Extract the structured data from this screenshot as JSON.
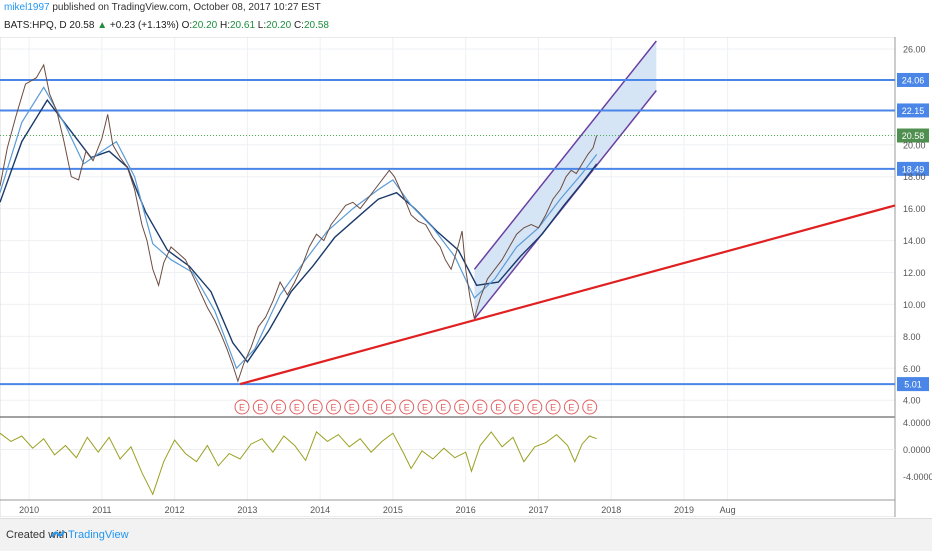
{
  "header": {
    "author": "mikel1997",
    "published_text": "published on TradingView.com, October 08, 2017 10:27 EST"
  },
  "symbol_line": {
    "symbol": "BATS:HPQ, D",
    "last": "20.58",
    "change_arrow": "▲",
    "change": "+0.23 (+1.13%)",
    "o_label": "O:",
    "o_val": "20.20",
    "h_label": "H:",
    "h_val": "20.61",
    "l_label": "L:",
    "l_val": "20.20",
    "c_label": "C:",
    "c_val": "20.58"
  },
  "footer": {
    "created_with": "Created with",
    "brand": "TradingView"
  },
  "colors": {
    "price": "#6d4c41",
    "ma_fast": "#5b9bd5",
    "ma_slow": "#1a3a6b",
    "hline": "#4a86e8",
    "trend": "#e02020",
    "channel_fill": "#cfe0f5",
    "channel_line": "#6a3fa0",
    "osc": "#9aa020",
    "earnings": "#e06060"
  },
  "chart_data": [
    {
      "type": "line",
      "series": [],
      "x_tick_labels": [
        "2010",
        "2011",
        "2012",
        "2013",
        "2014",
        "2015",
        "2016",
        "2017",
        "2018",
        "2019",
        "Aug"
      ],
      "y_tick_labels": [
        "26.00",
        "20.00",
        "18.00",
        "16.00",
        "14.00",
        "12.00",
        "10.00",
        "8.00",
        "6.00",
        "4.00"
      ],
      "ylim": [
        3.2,
        26.5
      ],
      "xlim": [
        2009.6,
        2021.9
      ],
      "price_points": [
        [
          2009.6,
          17.4
        ],
        [
          2009.7,
          19.8
        ],
        [
          2009.82,
          21.8
        ],
        [
          2009.95,
          23.8
        ],
        [
          2010.1,
          24.2
        ],
        [
          2010.2,
          25.0
        ],
        [
          2010.28,
          23.2
        ],
        [
          2010.38,
          22.1
        ],
        [
          2010.48,
          20.2
        ],
        [
          2010.58,
          18.0
        ],
        [
          2010.68,
          17.8
        ],
        [
          2010.78,
          19.6
        ],
        [
          2010.88,
          19.0
        ],
        [
          2011.0,
          20.4
        ],
        [
          2011.08,
          21.9
        ],
        [
          2011.15,
          20.0
        ],
        [
          2011.25,
          19.2
        ],
        [
          2011.35,
          18.6
        ],
        [
          2011.45,
          17.2
        ],
        [
          2011.55,
          15.0
        ],
        [
          2011.62,
          14.0
        ],
        [
          2011.7,
          12.2
        ],
        [
          2011.78,
          11.2
        ],
        [
          2011.85,
          12.6
        ],
        [
          2011.95,
          13.6
        ],
        [
          2012.05,
          13.2
        ],
        [
          2012.15,
          12.8
        ],
        [
          2012.25,
          11.8
        ],
        [
          2012.35,
          10.8
        ],
        [
          2012.45,
          9.8
        ],
        [
          2012.55,
          9.0
        ],
        [
          2012.65,
          8.0
        ],
        [
          2012.72,
          7.2
        ],
        [
          2012.8,
          6.2
        ],
        [
          2012.87,
          5.2
        ],
        [
          2012.95,
          6.3
        ],
        [
          2013.05,
          7.3
        ],
        [
          2013.15,
          8.6
        ],
        [
          2013.25,
          9.2
        ],
        [
          2013.35,
          10.2
        ],
        [
          2013.45,
          11.4
        ],
        [
          2013.55,
          10.6
        ],
        [
          2013.65,
          11.4
        ],
        [
          2013.75,
          12.4
        ],
        [
          2013.85,
          13.6
        ],
        [
          2013.95,
          14.4
        ],
        [
          2014.05,
          14.0
        ],
        [
          2014.15,
          15.0
        ],
        [
          2014.25,
          15.6
        ],
        [
          2014.35,
          16.2
        ],
        [
          2014.45,
          16.4
        ],
        [
          2014.55,
          16.0
        ],
        [
          2014.65,
          16.6
        ],
        [
          2014.75,
          17.2
        ],
        [
          2014.85,
          17.8
        ],
        [
          2014.95,
          18.4
        ],
        [
          2015.02,
          18.0
        ],
        [
          2015.1,
          17.2
        ],
        [
          2015.18,
          16.4
        ],
        [
          2015.25,
          15.6
        ],
        [
          2015.35,
          15.2
        ],
        [
          2015.45,
          15.0
        ],
        [
          2015.55,
          14.2
        ],
        [
          2015.65,
          13.6
        ],
        [
          2015.72,
          12.8
        ],
        [
          2015.8,
          12.2
        ],
        [
          2015.88,
          13.4
        ],
        [
          2015.95,
          14.6
        ],
        [
          2016.0,
          12.2
        ],
        [
          2016.06,
          10.4
        ],
        [
          2016.12,
          9.1
        ],
        [
          2016.2,
          10.4
        ],
        [
          2016.3,
          11.6
        ],
        [
          2016.4,
          12.2
        ],
        [
          2016.5,
          12.8
        ],
        [
          2016.6,
          13.6
        ],
        [
          2016.7,
          14.4
        ],
        [
          2016.8,
          14.8
        ],
        [
          2016.9,
          15.0
        ],
        [
          2017.0,
          14.8
        ],
        [
          2017.1,
          15.6
        ],
        [
          2017.2,
          16.6
        ],
        [
          2017.3,
          17.2
        ],
        [
          2017.38,
          18.0
        ],
        [
          2017.45,
          18.4
        ],
        [
          2017.52,
          18.2
        ],
        [
          2017.6,
          18.8
        ],
        [
          2017.68,
          19.4
        ],
        [
          2017.75,
          19.8
        ],
        [
          2017.8,
          20.58
        ]
      ],
      "ma_fast_points": [
        [
          2009.6,
          17.0
        ],
        [
          2009.9,
          21.4
        ],
        [
          2010.2,
          23.6
        ],
        [
          2010.5,
          21.2
        ],
        [
          2010.75,
          18.8
        ],
        [
          2011.0,
          19.6
        ],
        [
          2011.2,
          20.2
        ],
        [
          2011.45,
          18.0
        ],
        [
          2011.7,
          13.8
        ],
        [
          2011.95,
          12.8
        ],
        [
          2012.25,
          12.0
        ],
        [
          2012.55,
          9.6
        ],
        [
          2012.85,
          6.0
        ],
        [
          2013.1,
          7.2
        ],
        [
          2013.45,
          10.6
        ],
        [
          2013.8,
          12.8
        ],
        [
          2014.1,
          14.6
        ],
        [
          2014.45,
          16.0
        ],
        [
          2014.8,
          17.2
        ],
        [
          2015.0,
          17.8
        ],
        [
          2015.25,
          16.2
        ],
        [
          2015.55,
          14.8
        ],
        [
          2015.85,
          13.0
        ],
        [
          2016.12,
          10.4
        ],
        [
          2016.4,
          11.6
        ],
        [
          2016.7,
          13.6
        ],
        [
          2017.0,
          14.8
        ],
        [
          2017.3,
          16.6
        ],
        [
          2017.6,
          18.2
        ],
        [
          2017.8,
          19.4
        ]
      ],
      "ma_slow_points": [
        [
          2009.6,
          16.4
        ],
        [
          2009.9,
          20.2
        ],
        [
          2010.25,
          22.8
        ],
        [
          2010.55,
          21.0
        ],
        [
          2010.85,
          19.2
        ],
        [
          2011.1,
          19.6
        ],
        [
          2011.35,
          18.6
        ],
        [
          2011.6,
          15.8
        ],
        [
          2011.9,
          13.4
        ],
        [
          2012.2,
          12.4
        ],
        [
          2012.5,
          10.8
        ],
        [
          2012.8,
          7.6
        ],
        [
          2013.0,
          6.4
        ],
        [
          2013.3,
          8.4
        ],
        [
          2013.6,
          10.8
        ],
        [
          2013.9,
          12.4
        ],
        [
          2014.2,
          14.2
        ],
        [
          2014.5,
          15.4
        ],
        [
          2014.8,
          16.6
        ],
        [
          2015.05,
          17.0
        ],
        [
          2015.3,
          16.0
        ],
        [
          2015.6,
          14.6
        ],
        [
          2015.9,
          13.4
        ],
        [
          2016.15,
          11.2
        ],
        [
          2016.45,
          11.4
        ],
        [
          2016.75,
          13.0
        ],
        [
          2017.05,
          14.4
        ],
        [
          2017.35,
          16.2
        ],
        [
          2017.6,
          17.6
        ],
        [
          2017.8,
          18.8
        ]
      ],
      "horizontal_levels": [
        {
          "value": 24.06,
          "label": "24.06"
        },
        {
          "value": 22.15,
          "label": "22.15"
        },
        {
          "value": 18.49,
          "label": "18.49"
        },
        {
          "value": 5.01,
          "label": "5.01"
        }
      ],
      "last_price": {
        "value": 20.58,
        "label": "20.58"
      },
      "trendline": {
        "x1": 2012.9,
        "y1": 5.01,
        "x2": 2021.9,
        "y2": 16.2
      },
      "channel": {
        "lower": [
          [
            2016.12,
            9.1
          ],
          [
            2018.62,
            23.4
          ]
        ],
        "upper": [
          [
            2016.12,
            12.2
          ],
          [
            2018.62,
            26.5
          ]
        ]
      },
      "earnings_markers": {
        "label": "E",
        "count": 20
      }
    },
    {
      "type": "line",
      "series": [],
      "y_tick_labels": [
        "4.0000",
        "0.0000",
        "-4.0000"
      ],
      "ylim": [
        -7.0,
        4.5
      ],
      "xlim": [
        2009.6,
        2021.9
      ],
      "osc_points": [
        [
          2009.6,
          2.4
        ],
        [
          2009.75,
          1.2
        ],
        [
          2009.9,
          2.0
        ],
        [
          2010.05,
          0.2
        ],
        [
          2010.2,
          1.6
        ],
        [
          2010.35,
          -0.8
        ],
        [
          2010.5,
          0.6
        ],
        [
          2010.65,
          -1.2
        ],
        [
          2010.8,
          1.8
        ],
        [
          2010.95,
          -0.4
        ],
        [
          2011.1,
          1.8
        ],
        [
          2011.25,
          -1.4
        ],
        [
          2011.4,
          0.4
        ],
        [
          2011.55,
          -3.4
        ],
        [
          2011.7,
          -6.6
        ],
        [
          2011.85,
          -1.8
        ],
        [
          2012.0,
          1.4
        ],
        [
          2012.15,
          -0.6
        ],
        [
          2012.3,
          -1.8
        ],
        [
          2012.45,
          0.6
        ],
        [
          2012.6,
          -2.4
        ],
        [
          2012.75,
          -0.6
        ],
        [
          2012.9,
          -1.4
        ],
        [
          2013.05,
          0.8
        ],
        [
          2013.2,
          1.6
        ],
        [
          2013.35,
          -0.4
        ],
        [
          2013.5,
          2.0
        ],
        [
          2013.65,
          0.6
        ],
        [
          2013.8,
          -1.6
        ],
        [
          2013.95,
          2.6
        ],
        [
          2014.1,
          1.2
        ],
        [
          2014.25,
          2.2
        ],
        [
          2014.4,
          0.4
        ],
        [
          2014.55,
          1.6
        ],
        [
          2014.7,
          -0.4
        ],
        [
          2014.85,
          1.2
        ],
        [
          2015.0,
          2.4
        ],
        [
          2015.15,
          -0.6
        ],
        [
          2015.25,
          -2.8
        ],
        [
          2015.4,
          -0.2
        ],
        [
          2015.55,
          -1.4
        ],
        [
          2015.7,
          0.2
        ],
        [
          2015.85,
          -1.2
        ],
        [
          2016.0,
          -0.4
        ],
        [
          2016.08,
          -3.2
        ],
        [
          2016.2,
          0.6
        ],
        [
          2016.35,
          2.6
        ],
        [
          2016.5,
          0.4
        ],
        [
          2016.65,
          1.8
        ],
        [
          2016.8,
          -1.8
        ],
        [
          2016.95,
          0.4
        ],
        [
          2017.1,
          1.0
        ],
        [
          2017.25,
          2.2
        ],
        [
          2017.4,
          0.6
        ],
        [
          2017.5,
          -1.8
        ],
        [
          2017.6,
          0.8
        ],
        [
          2017.7,
          2.0
        ],
        [
          2017.8,
          1.6
        ]
      ]
    }
  ]
}
